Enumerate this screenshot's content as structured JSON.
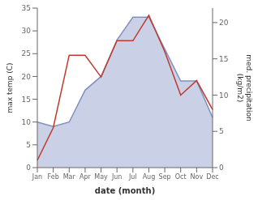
{
  "chart_data": {
    "type": "line",
    "categories": [
      "Jan",
      "Feb",
      "Mar",
      "Apr",
      "May",
      "Jun",
      "Jul",
      "Aug",
      "Sep",
      "Oct",
      "Nov",
      "Dec"
    ],
    "xlabel": "date (month)",
    "ylabel": "max temp (C)",
    "y2label": "med. precipitation\n(kg/m2)",
    "series": [
      {
        "type": "area",
        "color": "#8090c0",
        "axis": "y",
        "values": [
          10,
          9,
          10,
          17,
          20,
          28,
          33,
          33,
          26,
          19,
          19,
          11
        ]
      },
      {
        "type": "line",
        "color": "#c0392b",
        "axis": "y2",
        "values": [
          1.0,
          5.5,
          15.5,
          15.5,
          12.5,
          17.5,
          17.5,
          21.0,
          16.0,
          10.0,
          12.0,
          8.0
        ]
      }
    ],
    "ylim": [
      0,
      35
    ],
    "yticks": [
      0,
      5,
      10,
      15,
      20,
      25,
      30,
      35
    ],
    "y2lim": [
      0,
      22
    ],
    "y2ticks": [
      0,
      5,
      10,
      15,
      20
    ],
    "grid": false
  }
}
